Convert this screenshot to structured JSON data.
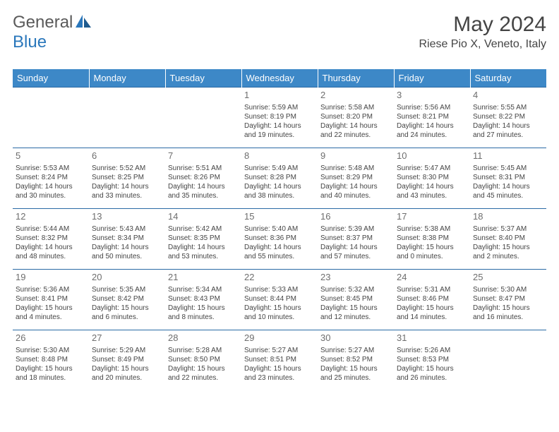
{
  "logo": {
    "text1": "General",
    "text2": "Blue"
  },
  "title": "May 2024",
  "location": "Riese Pio X, Veneto, Italy",
  "colors": {
    "header_bg": "#3d88c7",
    "header_text": "#ffffff",
    "border": "#2a6aa5",
    "daynum": "#6e6e6e",
    "body_text": "#444444",
    "logo_gray": "#5a5a5a",
    "logo_blue": "#2a77bb"
  },
  "weekdays": [
    "Sunday",
    "Monday",
    "Tuesday",
    "Wednesday",
    "Thursday",
    "Friday",
    "Saturday"
  ],
  "weeks": [
    [
      null,
      null,
      null,
      {
        "n": "1",
        "sr": "5:59 AM",
        "ss": "8:19 PM",
        "dl": "14 hours and 19 minutes."
      },
      {
        "n": "2",
        "sr": "5:58 AM",
        "ss": "8:20 PM",
        "dl": "14 hours and 22 minutes."
      },
      {
        "n": "3",
        "sr": "5:56 AM",
        "ss": "8:21 PM",
        "dl": "14 hours and 24 minutes."
      },
      {
        "n": "4",
        "sr": "5:55 AM",
        "ss": "8:22 PM",
        "dl": "14 hours and 27 minutes."
      }
    ],
    [
      {
        "n": "5",
        "sr": "5:53 AM",
        "ss": "8:24 PM",
        "dl": "14 hours and 30 minutes."
      },
      {
        "n": "6",
        "sr": "5:52 AM",
        "ss": "8:25 PM",
        "dl": "14 hours and 33 minutes."
      },
      {
        "n": "7",
        "sr": "5:51 AM",
        "ss": "8:26 PM",
        "dl": "14 hours and 35 minutes."
      },
      {
        "n": "8",
        "sr": "5:49 AM",
        "ss": "8:28 PM",
        "dl": "14 hours and 38 minutes."
      },
      {
        "n": "9",
        "sr": "5:48 AM",
        "ss": "8:29 PM",
        "dl": "14 hours and 40 minutes."
      },
      {
        "n": "10",
        "sr": "5:47 AM",
        "ss": "8:30 PM",
        "dl": "14 hours and 43 minutes."
      },
      {
        "n": "11",
        "sr": "5:45 AM",
        "ss": "8:31 PM",
        "dl": "14 hours and 45 minutes."
      }
    ],
    [
      {
        "n": "12",
        "sr": "5:44 AM",
        "ss": "8:32 PM",
        "dl": "14 hours and 48 minutes."
      },
      {
        "n": "13",
        "sr": "5:43 AM",
        "ss": "8:34 PM",
        "dl": "14 hours and 50 minutes."
      },
      {
        "n": "14",
        "sr": "5:42 AM",
        "ss": "8:35 PM",
        "dl": "14 hours and 53 minutes."
      },
      {
        "n": "15",
        "sr": "5:40 AM",
        "ss": "8:36 PM",
        "dl": "14 hours and 55 minutes."
      },
      {
        "n": "16",
        "sr": "5:39 AM",
        "ss": "8:37 PM",
        "dl": "14 hours and 57 minutes."
      },
      {
        "n": "17",
        "sr": "5:38 AM",
        "ss": "8:38 PM",
        "dl": "15 hours and 0 minutes."
      },
      {
        "n": "18",
        "sr": "5:37 AM",
        "ss": "8:40 PM",
        "dl": "15 hours and 2 minutes."
      }
    ],
    [
      {
        "n": "19",
        "sr": "5:36 AM",
        "ss": "8:41 PM",
        "dl": "15 hours and 4 minutes."
      },
      {
        "n": "20",
        "sr": "5:35 AM",
        "ss": "8:42 PM",
        "dl": "15 hours and 6 minutes."
      },
      {
        "n": "21",
        "sr": "5:34 AM",
        "ss": "8:43 PM",
        "dl": "15 hours and 8 minutes."
      },
      {
        "n": "22",
        "sr": "5:33 AM",
        "ss": "8:44 PM",
        "dl": "15 hours and 10 minutes."
      },
      {
        "n": "23",
        "sr": "5:32 AM",
        "ss": "8:45 PM",
        "dl": "15 hours and 12 minutes."
      },
      {
        "n": "24",
        "sr": "5:31 AM",
        "ss": "8:46 PM",
        "dl": "15 hours and 14 minutes."
      },
      {
        "n": "25",
        "sr": "5:30 AM",
        "ss": "8:47 PM",
        "dl": "15 hours and 16 minutes."
      }
    ],
    [
      {
        "n": "26",
        "sr": "5:30 AM",
        "ss": "8:48 PM",
        "dl": "15 hours and 18 minutes."
      },
      {
        "n": "27",
        "sr": "5:29 AM",
        "ss": "8:49 PM",
        "dl": "15 hours and 20 minutes."
      },
      {
        "n": "28",
        "sr": "5:28 AM",
        "ss": "8:50 PM",
        "dl": "15 hours and 22 minutes."
      },
      {
        "n": "29",
        "sr": "5:27 AM",
        "ss": "8:51 PM",
        "dl": "15 hours and 23 minutes."
      },
      {
        "n": "30",
        "sr": "5:27 AM",
        "ss": "8:52 PM",
        "dl": "15 hours and 25 minutes."
      },
      {
        "n": "31",
        "sr": "5:26 AM",
        "ss": "8:53 PM",
        "dl": "15 hours and 26 minutes."
      },
      null
    ]
  ],
  "labels": {
    "sunrise": "Sunrise: ",
    "sunset": "Sunset: ",
    "daylight": "Daylight: "
  }
}
